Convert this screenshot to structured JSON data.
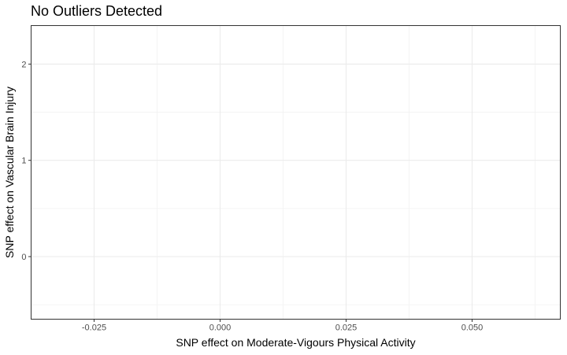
{
  "chart_data": {
    "type": "scatter",
    "title": "No Outliers Detected",
    "xlabel": "SNP effect on Moderate-Vigours Physical Activity",
    "ylabel": "SNP effect on Vascular Brain Injury",
    "xlim": [
      -0.0375,
      0.0675
    ],
    "ylim": [
      -0.65,
      2.4
    ],
    "x_ticks": [
      -0.025,
      0.0,
      0.025,
      0.05
    ],
    "x_tick_labels": [
      "-0.025",
      "0.000",
      "0.025",
      "0.050"
    ],
    "y_ticks": [
      0,
      1,
      2
    ],
    "y_tick_labels": [
      "0",
      "1",
      "2"
    ],
    "points": [],
    "grid": true,
    "legend": "none"
  }
}
